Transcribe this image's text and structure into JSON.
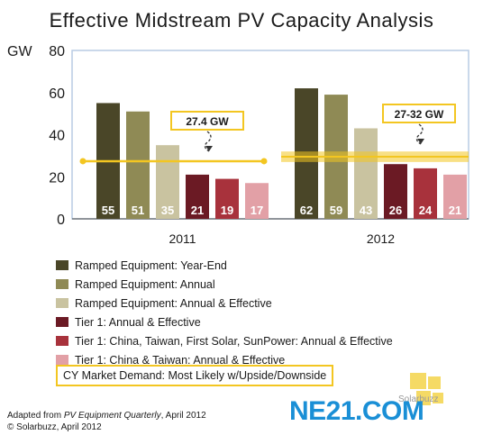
{
  "title": "Effective Midstream PV Capacity Analysis",
  "chart_data": {
    "type": "bar",
    "categories": [
      "2011",
      "2012"
    ],
    "ylabel": "GW",
    "ylim": [
      0,
      80
    ],
    "yticks": [
      0,
      20,
      40,
      60,
      80
    ],
    "series": [
      {
        "name": "Ramped Equipment: Year-End",
        "color": "#4a4628",
        "values": [
          55,
          62
        ]
      },
      {
        "name": "Ramped Equipment: Annual",
        "color": "#8f8a55",
        "values": [
          51,
          59
        ]
      },
      {
        "name": "Ramped Equipment: Annual & Effective",
        "color": "#c9c3a0",
        "values": [
          35,
          43
        ]
      },
      {
        "name": "Tier 1: Annual & Effective",
        "color": "#6b1a24",
        "values": [
          21,
          26
        ]
      },
      {
        "name": "Tier 1: China, Taiwan, First Solar, SunPower: Annual & Effective",
        "color": "#a8323c",
        "values": [
          19,
          24
        ]
      },
      {
        "name": "Tier 1: China & Taiwan: Annual & Effective",
        "color": "#e2a0a6",
        "values": [
          17,
          21
        ]
      }
    ],
    "demand": {
      "name": "CY Market Demand: Most Likely w/Upside/Downside",
      "color": "#f3c621",
      "y2011": 27.4,
      "y2012_range": [
        27,
        32
      ],
      "callout_2011": "27.4 GW",
      "callout_2012": "27-32 GW"
    },
    "grid": false,
    "legend_position": "bottom"
  },
  "source": {
    "line1_prefix": "Adapted from ",
    "line1_italic": "PV Equipment Quarterly",
    "line1_suffix": ", April 2012",
    "line2": "© Solarbuzz, April 2012"
  },
  "logo": {
    "text": "NE21.COM",
    "watermark": "Solarbuzz"
  }
}
